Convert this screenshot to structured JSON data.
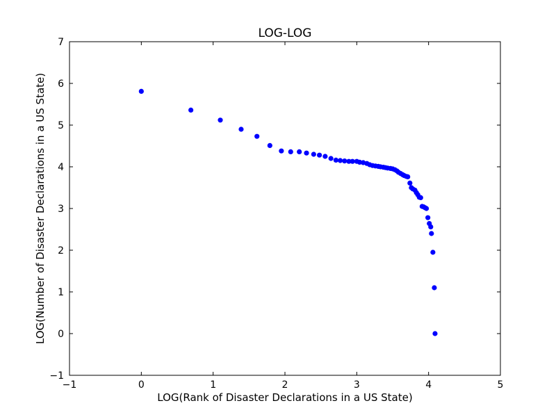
{
  "chart_data": {
    "type": "scatter",
    "title": "LOG-LOG",
    "xlabel": "LOG(Rank of Disaster Declarations in a US State)",
    "ylabel": "LOG(Number of Disaster Declarations in a US State)",
    "xlim": [
      -1,
      5
    ],
    "ylim": [
      -1,
      7
    ],
    "xticks": [
      -1,
      0,
      1,
      2,
      3,
      4,
      5
    ],
    "yticks": [
      -1,
      0,
      1,
      2,
      3,
      4,
      5,
      6,
      7
    ],
    "xtick_labels": [
      "−1",
      "0",
      "1",
      "2",
      "3",
      "4",
      "5"
    ],
    "ytick_labels": [
      "−1",
      "0",
      "1",
      "2",
      "3",
      "4",
      "5",
      "6",
      "7"
    ],
    "grid": false,
    "marker_color": "#0000ff",
    "series": [
      {
        "points": [
          [
            0.0,
            5.81
          ],
          [
            0.69,
            5.36
          ],
          [
            1.1,
            5.12
          ],
          [
            1.39,
            4.9
          ],
          [
            1.61,
            4.73
          ],
          [
            1.79,
            4.51
          ],
          [
            1.95,
            4.38
          ],
          [
            2.08,
            4.36
          ],
          [
            2.2,
            4.36
          ],
          [
            2.3,
            4.33
          ],
          [
            2.4,
            4.3
          ],
          [
            2.48,
            4.28
          ],
          [
            2.56,
            4.25
          ],
          [
            2.64,
            4.2
          ],
          [
            2.71,
            4.16
          ],
          [
            2.77,
            4.15
          ],
          [
            2.83,
            4.14
          ],
          [
            2.89,
            4.13
          ],
          [
            2.94,
            4.13
          ],
          [
            3.0,
            4.13
          ],
          [
            3.04,
            4.11
          ],
          [
            3.09,
            4.1
          ],
          [
            3.14,
            4.08
          ],
          [
            3.18,
            4.05
          ],
          [
            3.22,
            4.03
          ],
          [
            3.26,
            4.02
          ],
          [
            3.3,
            4.01
          ],
          [
            3.33,
            4.0
          ],
          [
            3.37,
            3.99
          ],
          [
            3.4,
            3.98
          ],
          [
            3.43,
            3.97
          ],
          [
            3.47,
            3.96
          ],
          [
            3.5,
            3.95
          ],
          [
            3.53,
            3.93
          ],
          [
            3.56,
            3.9
          ],
          [
            3.58,
            3.87
          ],
          [
            3.61,
            3.84
          ],
          [
            3.64,
            3.81
          ],
          [
            3.66,
            3.79
          ],
          [
            3.69,
            3.77
          ],
          [
            3.71,
            3.76
          ],
          [
            3.74,
            3.61
          ],
          [
            3.76,
            3.5
          ],
          [
            3.78,
            3.47
          ],
          [
            3.81,
            3.44
          ],
          [
            3.83,
            3.38
          ],
          [
            3.85,
            3.33
          ],
          [
            3.87,
            3.27
          ],
          [
            3.89,
            3.26
          ],
          [
            3.91,
            3.05
          ],
          [
            3.93,
            3.04
          ],
          [
            3.95,
            3.02
          ],
          [
            3.97,
            3.0
          ],
          [
            3.99,
            2.78
          ],
          [
            4.01,
            2.64
          ],
          [
            4.03,
            2.56
          ],
          [
            4.04,
            2.4
          ],
          [
            4.06,
            1.95
          ],
          [
            4.08,
            1.1
          ],
          [
            4.09,
            0.0
          ]
        ]
      }
    ]
  }
}
